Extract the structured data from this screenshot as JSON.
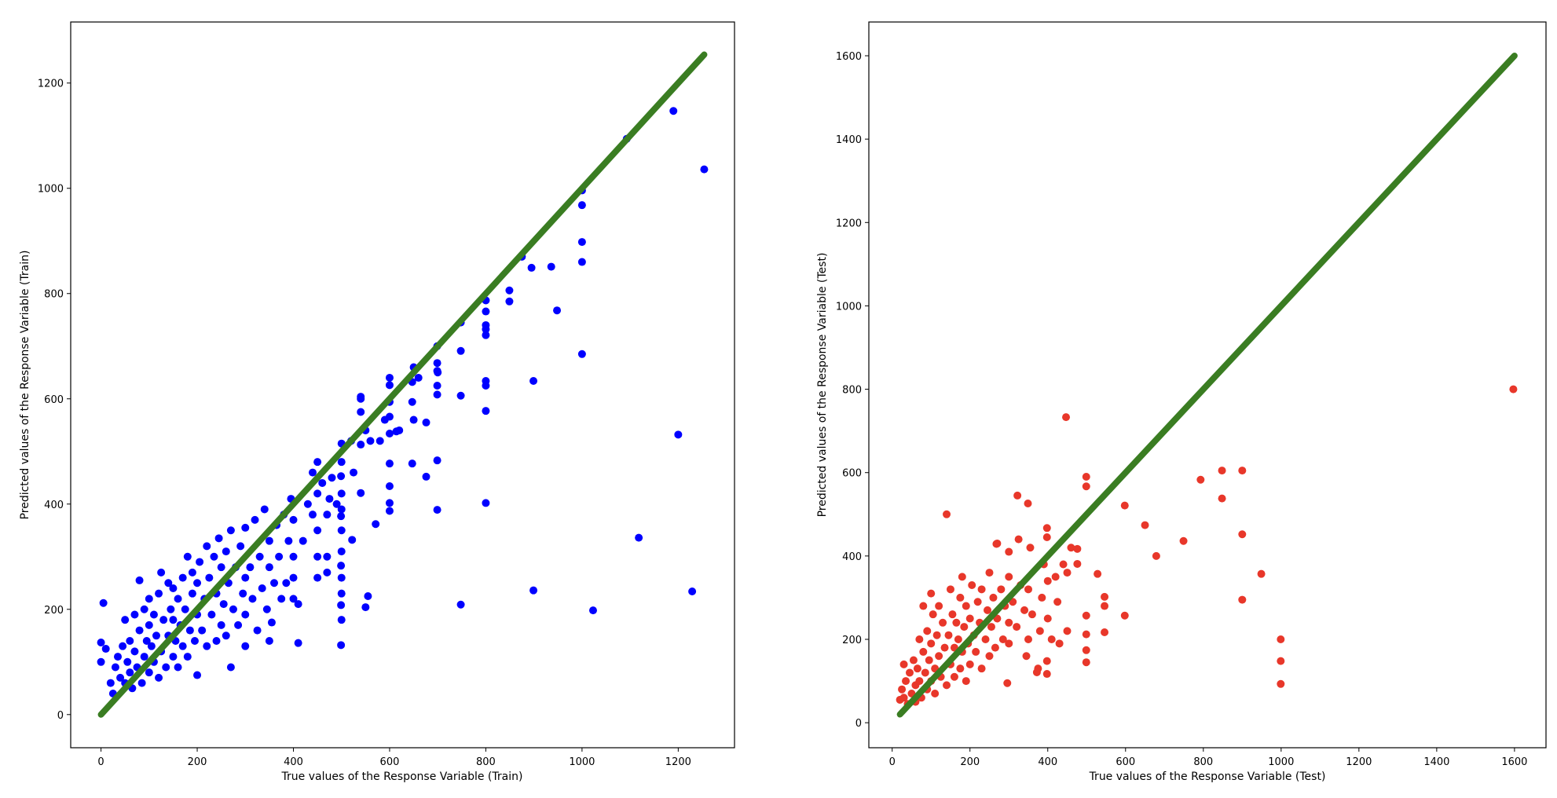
{
  "chart_data": [
    {
      "type": "scatter",
      "title": "",
      "xlabel": "True values of the Response Variable (Train)",
      "ylabel": "Predicted values of the Response Variable (Train)",
      "xlim": [
        -63,
        1317
      ],
      "ylim": [
        -63,
        1316
      ],
      "xticks": [
        0,
        200,
        400,
        600,
        800,
        1000,
        1200
      ],
      "yticks": [
        0,
        200,
        400,
        600,
        800,
        1000,
        1200
      ],
      "grid": false,
      "point_color": "#0000ff",
      "reference_line": {
        "color": "#3a7d22",
        "from": [
          0,
          0
        ],
        "to": [
          1254,
          1254
        ]
      },
      "points": [
        [
          5,
          212
        ],
        [
          0,
          137
        ],
        [
          0,
          100
        ],
        [
          10,
          125
        ],
        [
          20,
          60
        ],
        [
          25,
          40
        ],
        [
          30,
          90
        ],
        [
          35,
          110
        ],
        [
          40,
          70
        ],
        [
          45,
          130
        ],
        [
          50,
          180
        ],
        [
          50,
          60
        ],
        [
          55,
          100
        ],
        [
          60,
          140
        ],
        [
          60,
          80
        ],
        [
          65,
          50
        ],
        [
          70,
          120
        ],
        [
          70,
          190
        ],
        [
          75,
          90
        ],
        [
          80,
          160
        ],
        [
          80,
          255
        ],
        [
          85,
          60
        ],
        [
          90,
          110
        ],
        [
          90,
          200
        ],
        [
          95,
          140
        ],
        [
          100,
          80
        ],
        [
          100,
          170
        ],
        [
          100,
          220
        ],
        [
          105,
          130
        ],
        [
          110,
          100
        ],
        [
          110,
          190
        ],
        [
          115,
          150
        ],
        [
          120,
          70
        ],
        [
          120,
          230
        ],
        [
          125,
          120
        ],
        [
          125,
          270
        ],
        [
          130,
          180
        ],
        [
          135,
          90
        ],
        [
          140,
          150
        ],
        [
          140,
          250
        ],
        [
          145,
          200
        ],
        [
          150,
          110
        ],
        [
          150,
          180
        ],
        [
          150,
          240
        ],
        [
          155,
          140
        ],
        [
          160,
          220
        ],
        [
          160,
          90
        ],
        [
          165,
          170
        ],
        [
          170,
          260
        ],
        [
          170,
          130
        ],
        [
          175,
          200
        ],
        [
          180,
          300
        ],
        [
          180,
          110
        ],
        [
          185,
          160
        ],
        [
          190,
          230
        ],
        [
          190,
          270
        ],
        [
          195,
          140
        ],
        [
          200,
          75
        ],
        [
          200,
          190
        ],
        [
          200,
          250
        ],
        [
          205,
          290
        ],
        [
          210,
          160
        ],
        [
          215,
          220
        ],
        [
          220,
          320
        ],
        [
          220,
          130
        ],
        [
          225,
          260
        ],
        [
          230,
          190
        ],
        [
          235,
          300
        ],
        [
          240,
          140
        ],
        [
          240,
          230
        ],
        [
          245,
          335
        ],
        [
          250,
          170
        ],
        [
          250,
          280
        ],
        [
          255,
          210
        ],
        [
          260,
          310
        ],
        [
          260,
          150
        ],
        [
          265,
          250
        ],
        [
          270,
          90
        ],
        [
          270,
          350
        ],
        [
          275,
          200
        ],
        [
          280,
          280
        ],
        [
          285,
          170
        ],
        [
          290,
          320
        ],
        [
          295,
          230
        ],
        [
          300,
          130
        ],
        [
          300,
          260
        ],
        [
          300,
          355
        ],
        [
          300,
          190
        ],
        [
          310,
          280
        ],
        [
          315,
          220
        ],
        [
          320,
          370
        ],
        [
          325,
          160
        ],
        [
          330,
          300
        ],
        [
          335,
          240
        ],
        [
          340,
          390
        ],
        [
          345,
          200
        ],
        [
          350,
          140
        ],
        [
          350,
          280
        ],
        [
          350,
          330
        ],
        [
          355,
          175
        ],
        [
          360,
          250
        ],
        [
          365,
          360
        ],
        [
          370,
          300
        ],
        [
          375,
          220
        ],
        [
          380,
          380
        ],
        [
          385,
          250
        ],
        [
          390,
          330
        ],
        [
          395,
          410
        ],
        [
          400,
          300
        ],
        [
          400,
          220
        ],
        [
          400,
          370
        ],
        [
          400,
          260
        ],
        [
          410,
          210
        ],
        [
          420,
          330
        ],
        [
          430,
          400
        ],
        [
          440,
          460
        ],
        [
          440,
          380
        ],
        [
          450,
          480
        ],
        [
          450,
          420
        ],
        [
          450,
          350
        ],
        [
          450,
          300
        ],
        [
          450,
          260
        ],
        [
          460,
          440
        ],
        [
          470,
          380
        ],
        [
          470,
          300
        ],
        [
          470,
          270
        ],
        [
          475,
          410
        ],
        [
          480,
          450
        ],
        [
          490,
          400
        ],
        [
          500,
          515
        ],
        [
          500,
          480
        ],
        [
          500,
          420
        ],
        [
          500,
          390
        ],
        [
          500,
          350
        ],
        [
          500,
          310
        ],
        [
          500,
          260
        ],
        [
          500,
          230
        ],
        [
          500,
          180
        ],
        [
          520,
          520
        ],
        [
          525,
          460
        ],
        [
          540,
          600
        ],
        [
          550,
          540
        ],
        [
          560,
          520
        ],
        [
          580,
          520
        ],
        [
          590,
          560
        ],
        [
          600,
          640
        ],
        [
          620,
          540
        ],
        [
          650,
          660
        ],
        [
          650,
          560
        ],
        [
          660,
          640
        ],
        [
          700,
          650
        ],
        [
          800,
          740
        ],
        [
          875,
          870
        ],
        [
          1254,
          1036
        ],
        [
          1190,
          1147
        ],
        [
          1093,
          1094
        ],
        [
          1000,
          996
        ],
        [
          1000,
          968
        ],
        [
          1000,
          898
        ],
        [
          1000,
          860
        ],
        [
          1000,
          685
        ],
        [
          936,
          851
        ],
        [
          895,
          849
        ],
        [
          849,
          806
        ],
        [
          849,
          785
        ],
        [
          948,
          768
        ],
        [
          800,
          787
        ],
        [
          800,
          766
        ],
        [
          800,
          721
        ],
        [
          800,
          732
        ],
        [
          800,
          634
        ],
        [
          800,
          625
        ],
        [
          800,
          577
        ],
        [
          800,
          402
        ],
        [
          899,
          634
        ],
        [
          899,
          236
        ],
        [
          1023,
          198
        ],
        [
          1200,
          532
        ],
        [
          1118,
          336
        ],
        [
          1229,
          234
        ],
        [
          748,
          745
        ],
        [
          748,
          691
        ],
        [
          748,
          606
        ],
        [
          748,
          209
        ],
        [
          699,
          700
        ],
        [
          699,
          668
        ],
        [
          699,
          653
        ],
        [
          699,
          625
        ],
        [
          699,
          608
        ],
        [
          699,
          483
        ],
        [
          699,
          389
        ],
        [
          676,
          555
        ],
        [
          676,
          452
        ],
        [
          647,
          594
        ],
        [
          647,
          632
        ],
        [
          647,
          477
        ],
        [
          600,
          626
        ],
        [
          600,
          594
        ],
        [
          600,
          566
        ],
        [
          600,
          534
        ],
        [
          600,
          477
        ],
        [
          600,
          434
        ],
        [
          600,
          402
        ],
        [
          600,
          387
        ],
        [
          614,
          538
        ],
        [
          540,
          604
        ],
        [
          540,
          575
        ],
        [
          540,
          513
        ],
        [
          540,
          421
        ],
        [
          550,
          204
        ],
        [
          555,
          225
        ],
        [
          499,
          453
        ],
        [
          499,
          377
        ],
        [
          499,
          283
        ],
        [
          499,
          208
        ],
        [
          499,
          132
        ],
        [
          571,
          362
        ],
        [
          522,
          332
        ],
        [
          410,
          136
        ]
      ]
    },
    {
      "type": "scatter",
      "title": "",
      "xlabel": "True values of the Response Variable (Test)",
      "ylabel": "Predicted values of the Response Variable (Test)",
      "xlim": [
        -60,
        1681
      ],
      "ylim": [
        -60,
        1681
      ],
      "xticks": [
        0,
        200,
        400,
        600,
        800,
        1000,
        1200,
        1400,
        1600
      ],
      "yticks": [
        0,
        200,
        400,
        600,
        800,
        1000,
        1200,
        1400,
        1600
      ],
      "grid": false,
      "point_color": "#e8372a",
      "reference_line": {
        "color": "#3a7d22",
        "from": [
          20,
          20
        ],
        "to": [
          1600,
          1600
        ]
      },
      "points": [
        [
          20,
          55
        ],
        [
          25,
          80
        ],
        [
          30,
          60
        ],
        [
          30,
          140
        ],
        [
          35,
          100
        ],
        [
          40,
          45
        ],
        [
          45,
          120
        ],
        [
          50,
          70
        ],
        [
          55,
          150
        ],
        [
          60,
          90
        ],
        [
          60,
          50
        ],
        [
          65,
          130
        ],
        [
          70,
          100
        ],
        [
          70,
          200
        ],
        [
          75,
          60
        ],
        [
          80,
          170
        ],
        [
          80,
          280
        ],
        [
          85,
          120
        ],
        [
          90,
          80
        ],
        [
          90,
          220
        ],
        [
          95,
          150
        ],
        [
          100,
          310
        ],
        [
          100,
          190
        ],
        [
          100,
          100
        ],
        [
          105,
          260
        ],
        [
          110,
          130
        ],
        [
          110,
          70
        ],
        [
          115,
          210
        ],
        [
          120,
          160
        ],
        [
          120,
          280
        ],
        [
          125,
          110
        ],
        [
          130,
          240
        ],
        [
          135,
          180
        ],
        [
          140,
          500
        ],
        [
          140,
          90
        ],
        [
          145,
          210
        ],
        [
          150,
          140
        ],
        [
          150,
          320
        ],
        [
          155,
          260
        ],
        [
          160,
          180
        ],
        [
          160,
          110
        ],
        [
          165,
          240
        ],
        [
          170,
          200
        ],
        [
          175,
          300
        ],
        [
          175,
          130
        ],
        [
          180,
          350
        ],
        [
          180,
          170
        ],
        [
          185,
          230
        ],
        [
          190,
          100
        ],
        [
          190,
          280
        ],
        [
          195,
          190
        ],
        [
          200,
          250
        ],
        [
          200,
          140
        ],
        [
          205,
          330
        ],
        [
          210,
          210
        ],
        [
          215,
          170
        ],
        [
          220,
          290
        ],
        [
          225,
          240
        ],
        [
          230,
          130
        ],
        [
          230,
          320
        ],
        [
          240,
          200
        ],
        [
          245,
          270
        ],
        [
          250,
          160
        ],
        [
          250,
          360
        ],
        [
          255,
          230
        ],
        [
          260,
          300
        ],
        [
          265,
          180
        ],
        [
          270,
          430
        ],
        [
          270,
          250
        ],
        [
          280,
          320
        ],
        [
          285,
          200
        ],
        [
          290,
          280
        ],
        [
          300,
          240
        ],
        [
          300,
          350
        ],
        [
          300,
          190
        ],
        [
          300,
          410
        ],
        [
          310,
          290
        ],
        [
          320,
          230
        ],
        [
          325,
          440
        ],
        [
          330,
          330
        ],
        [
          340,
          270
        ],
        [
          345,
          160
        ],
        [
          350,
          320
        ],
        [
          350,
          200
        ],
        [
          355,
          420
        ],
        [
          360,
          260
        ],
        [
          375,
          130
        ],
        [
          380,
          220
        ],
        [
          385,
          300
        ],
        [
          390,
          380
        ],
        [
          400,
          250
        ],
        [
          400,
          340
        ],
        [
          410,
          200
        ],
        [
          420,
          350
        ],
        [
          425,
          290
        ],
        [
          430,
          190
        ],
        [
          440,
          380
        ],
        [
          450,
          220
        ],
        [
          450,
          360
        ],
        [
          460,
          420
        ],
        [
          1597,
          800
        ],
        [
          447,
          733
        ],
        [
          499,
          590
        ],
        [
          499,
          567
        ],
        [
          848,
          605
        ],
        [
          900,
          605
        ],
        [
          848,
          538
        ],
        [
          793,
          583
        ],
        [
          900,
          452
        ],
        [
          900,
          295
        ],
        [
          949,
          357
        ],
        [
          749,
          436
        ],
        [
          679,
          400
        ],
        [
          650,
          474
        ],
        [
          598,
          521
        ],
        [
          598,
          257
        ],
        [
          999,
          200
        ],
        [
          999,
          148
        ],
        [
          999,
          93
        ],
        [
          349,
          526
        ],
        [
          322,
          545
        ],
        [
          398,
          467
        ],
        [
          398,
          445
        ],
        [
          398,
          148
        ],
        [
          398,
          117
        ],
        [
          546,
          302
        ],
        [
          546,
          280
        ],
        [
          546,
          217
        ],
        [
          499,
          257
        ],
        [
          499,
          212
        ],
        [
          499,
          174
        ],
        [
          499,
          145
        ],
        [
          528,
          357
        ],
        [
          476,
          417
        ],
        [
          476,
          381
        ],
        [
          296,
          95
        ],
        [
          268,
          429
        ],
        [
          372,
          121
        ]
      ]
    }
  ]
}
